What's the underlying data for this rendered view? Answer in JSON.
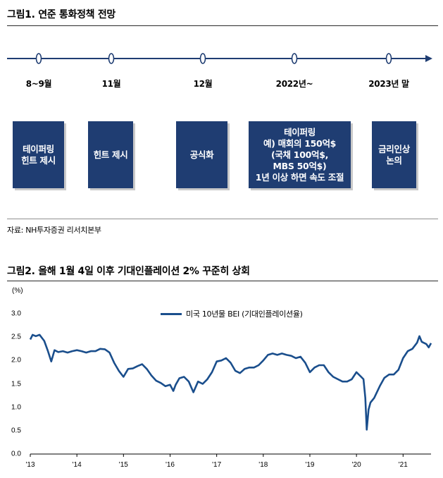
{
  "figure1": {
    "title": "그림1. 연준 통화정책 전망",
    "dates": [
      "8~9월",
      "11월",
      "12월",
      "2022년~",
      "2023년 말"
    ],
    "events": [
      "테이퍼링\n힌트 제시",
      "힌트 제시",
      "공식화",
      "테이퍼링\n예) 매회의 150억$\n(국채 100억$,\nMBS 50억$)\n1년 이상 하면 속도 조절",
      "금리인상\n논의"
    ],
    "source": "자료: NH투자증권 리서치본부"
  },
  "figure2": {
    "title": "그림2. 올해 1월 4일 이후 기대인플레이션 2% 꾸준히 상회",
    "y_unit": "(%)",
    "line_color": "#1a4e8c"
  },
  "chart_data": {
    "type": "line",
    "title": "",
    "xlabel": "",
    "ylabel": "(%)",
    "ylim": [
      0.0,
      3.0
    ],
    "yticks": [
      "0.0",
      "0.5",
      "1.0",
      "1.5",
      "2.0",
      "2.5",
      "3.0"
    ],
    "xticks": [
      "'13",
      "'14",
      "'15",
      "'16",
      "'17",
      "'18",
      "'19",
      "'20",
      "'21"
    ],
    "grid": false,
    "legend": "top-center",
    "series": [
      {
        "name": "미국 10년물 BEI (기대인플레이션율)",
        "x": [
          2013.0,
          2013.05,
          2013.12,
          2013.2,
          2013.3,
          2013.38,
          2013.45,
          2013.52,
          2013.6,
          2013.7,
          2013.8,
          2013.9,
          2014.0,
          2014.1,
          2014.2,
          2014.3,
          2014.4,
          2014.5,
          2014.6,
          2014.7,
          2014.8,
          2014.9,
          2015.0,
          2015.1,
          2015.2,
          2015.3,
          2015.4,
          2015.5,
          2015.6,
          2015.7,
          2015.8,
          2015.9,
          2016.0,
          2016.07,
          2016.12,
          2016.2,
          2016.3,
          2016.4,
          2016.5,
          2016.6,
          2016.7,
          2016.8,
          2016.9,
          2017.0,
          2017.1,
          2017.2,
          2017.3,
          2017.4,
          2017.5,
          2017.6,
          2017.7,
          2017.8,
          2017.9,
          2018.0,
          2018.1,
          2018.2,
          2018.3,
          2018.4,
          2018.5,
          2018.6,
          2018.7,
          2018.8,
          2018.9,
          2019.0,
          2019.1,
          2019.2,
          2019.3,
          2019.4,
          2019.5,
          2019.6,
          2019.7,
          2019.8,
          2019.9,
          2020.0,
          2020.1,
          2020.15,
          2020.19,
          2020.22,
          2020.26,
          2020.3,
          2020.38,
          2020.5,
          2020.6,
          2020.7,
          2020.8,
          2020.9,
          2021.0,
          2021.1,
          2021.2,
          2021.3,
          2021.35,
          2021.4,
          2021.5,
          2021.55,
          2021.6
        ],
        "values": [
          2.45,
          2.55,
          2.52,
          2.55,
          2.42,
          2.2,
          1.98,
          2.22,
          2.18,
          2.2,
          2.17,
          2.2,
          2.22,
          2.2,
          2.17,
          2.2,
          2.2,
          2.25,
          2.24,
          2.17,
          1.95,
          1.78,
          1.65,
          1.82,
          1.83,
          1.88,
          1.92,
          1.82,
          1.68,
          1.57,
          1.52,
          1.45,
          1.48,
          1.35,
          1.48,
          1.62,
          1.65,
          1.55,
          1.32,
          1.55,
          1.5,
          1.6,
          1.75,
          1.98,
          2.0,
          2.05,
          1.95,
          1.78,
          1.73,
          1.82,
          1.85,
          1.85,
          1.9,
          2.0,
          2.12,
          2.15,
          2.12,
          2.15,
          2.12,
          2.1,
          2.05,
          2.08,
          1.95,
          1.75,
          1.85,
          1.9,
          1.9,
          1.75,
          1.65,
          1.6,
          1.55,
          1.55,
          1.6,
          1.75,
          1.65,
          1.6,
          1.2,
          0.52,
          0.95,
          1.1,
          1.2,
          1.45,
          1.63,
          1.7,
          1.7,
          1.8,
          2.05,
          2.2,
          2.25,
          2.38,
          2.52,
          2.4,
          2.35,
          2.28,
          2.37
        ]
      }
    ]
  }
}
